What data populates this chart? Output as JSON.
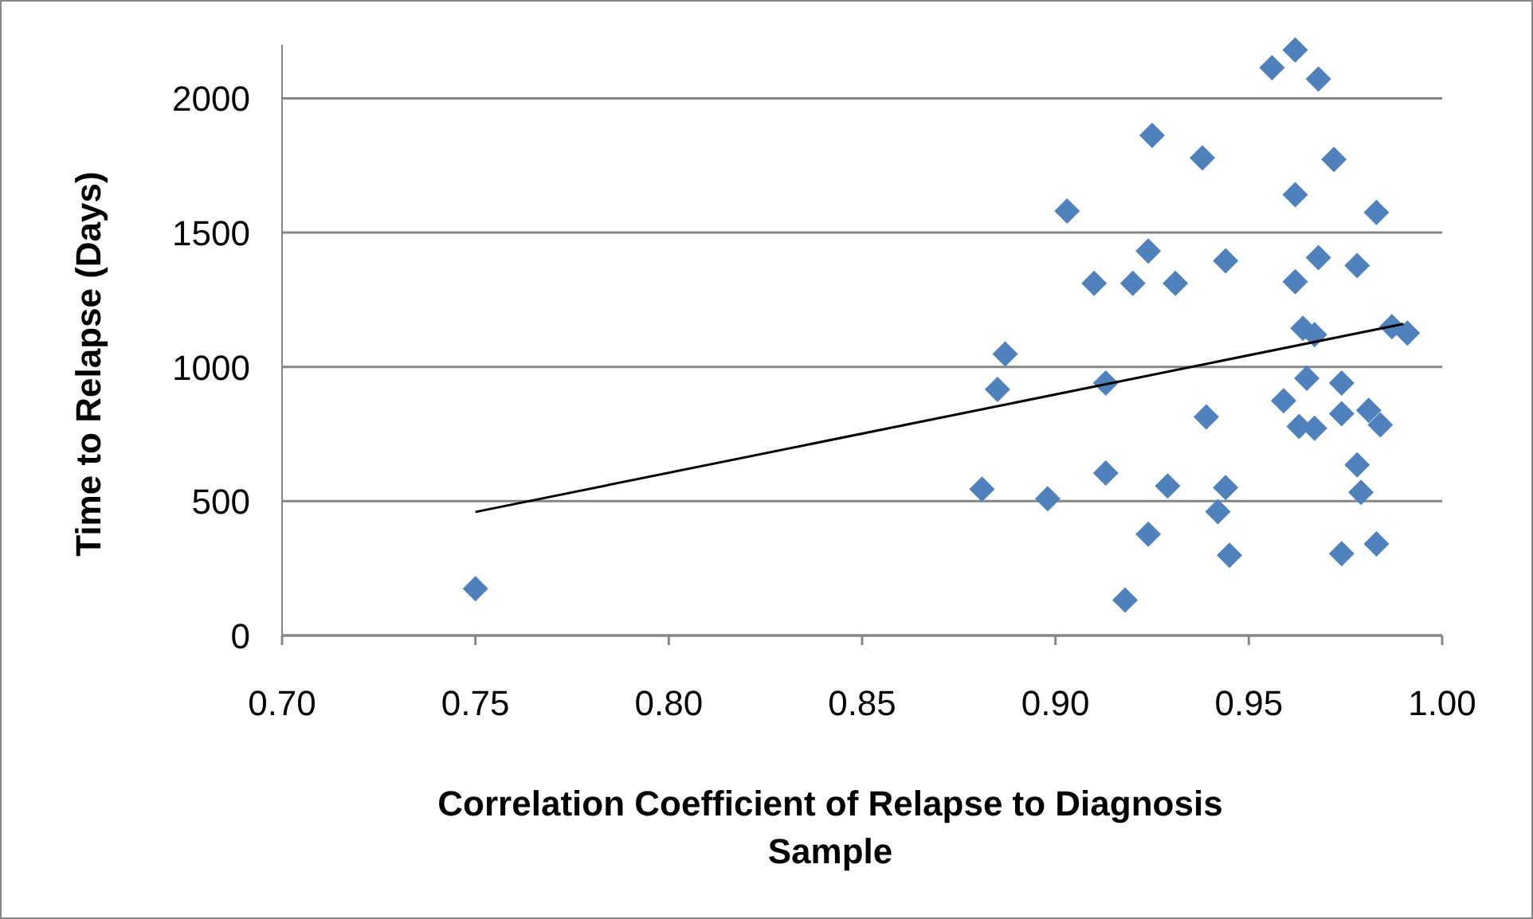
{
  "chart_data": {
    "type": "scatter",
    "xlabel": "Correlation Coefficient of Relapse to Diagnosis Sample",
    "ylabel": "Time to Relapse (Days)",
    "xlim": [
      0.7,
      1.0
    ],
    "xticks": [
      {
        "value": 0.7,
        "label": "0.70"
      },
      {
        "value": 0.75,
        "label": "0.75"
      },
      {
        "value": 0.8,
        "label": "0.80"
      },
      {
        "value": 0.85,
        "label": "0.85"
      },
      {
        "value": 0.9,
        "label": "0.90"
      },
      {
        "value": 0.95,
        "label": "0.95"
      },
      {
        "value": 1.0,
        "label": "1.00"
      }
    ],
    "ylim": [
      0,
      2200
    ],
    "yticks": [
      0,
      500,
      1000,
      1500,
      2000
    ],
    "grid": "y",
    "marker": "diamond",
    "series": [
      {
        "color": "#4f81bd",
        "x": [
          0.75,
          0.881,
          0.885,
          0.887,
          0.903,
          0.898,
          0.91,
          0.913,
          0.913,
          0.925,
          0.924,
          0.92,
          0.931,
          0.924,
          0.918,
          0.929,
          0.938,
          0.939,
          0.942,
          0.944,
          0.944,
          0.945,
          0.956,
          0.962,
          0.968,
          0.972,
          0.962,
          0.983,
          0.968,
          0.978,
          0.962,
          0.964,
          0.967,
          0.987,
          0.991,
          0.965,
          0.974,
          0.959,
          0.963,
          0.967,
          0.974,
          0.981,
          0.984,
          0.978,
          0.979,
          0.974,
          0.983
        ],
        "values": [
          174,
          545,
          916,
          1048,
          1580,
          509,
          1311,
          940,
          605,
          1862,
          1431,
          1311,
          1311,
          377,
          132,
          557,
          1778,
          814,
          461,
          551,
          1395,
          299,
          2114,
          2180,
          2072,
          1772,
          1641,
          1575,
          1407,
          1377,
          1317,
          1144,
          1120,
          1150,
          1126,
          958,
          940,
          874,
          778,
          772,
          826,
          838,
          784,
          635,
          533,
          305,
          341
        ]
      },
      {
        "type": "line",
        "color": "#000000",
        "marker": "none",
        "x": [
          0.75,
          0.99
        ],
        "values": [
          460,
          1160
        ]
      }
    ]
  }
}
